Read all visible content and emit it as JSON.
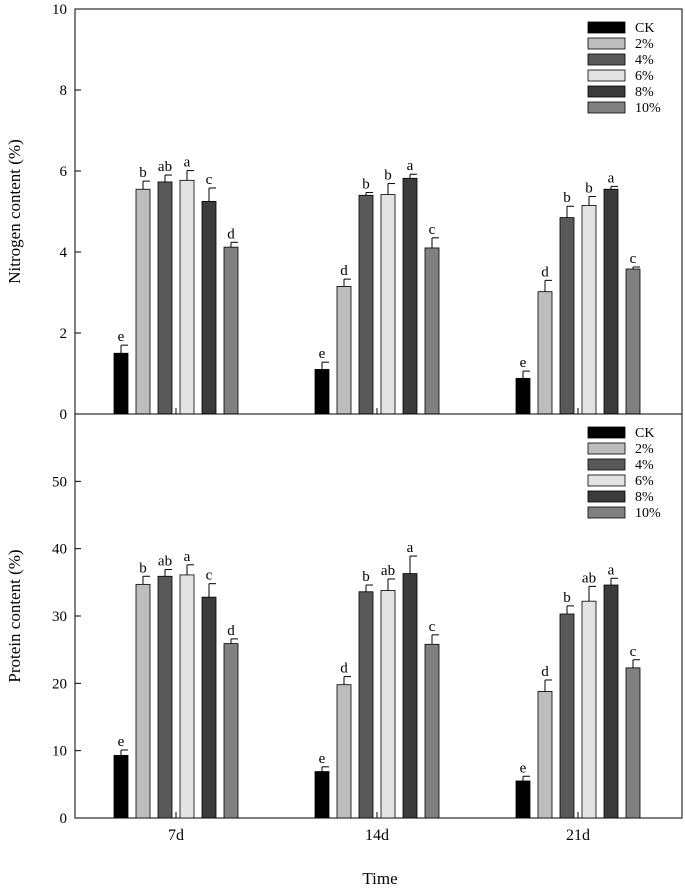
{
  "chart_data": [
    {
      "type": "bar",
      "panel": "top",
      "categories": [
        "7d",
        "14d",
        "21d"
      ],
      "ylabel": "Nitrogen content (%)",
      "ylim": [
        0,
        10
      ],
      "yticks": [
        0,
        2,
        4,
        6,
        8,
        10
      ],
      "legend_position": "top-right",
      "series": [
        {
          "name": "CK",
          "color": "#000000",
          "values": [
            1.5,
            1.1,
            0.88
          ],
          "errors": [
            0.2,
            0.18,
            0.18
          ],
          "letters": [
            "e",
            "e",
            "e"
          ]
        },
        {
          "name": "2%",
          "color": "#bdbdbd",
          "values": [
            5.55,
            3.15,
            3.02
          ],
          "errors": [
            0.2,
            0.18,
            0.28
          ],
          "letters": [
            "b",
            "d",
            "d"
          ]
        },
        {
          "name": "4%",
          "color": "#595959",
          "values": [
            5.73,
            5.4,
            4.85
          ],
          "errors": [
            0.17,
            0.07,
            0.28
          ],
          "letters": [
            "ab",
            "b",
            "b"
          ]
        },
        {
          "name": "6%",
          "color": "#e3e3e3",
          "values": [
            5.77,
            5.42,
            5.15
          ],
          "errors": [
            0.24,
            0.27,
            0.22
          ],
          "letters": [
            "a",
            "b",
            "b"
          ]
        },
        {
          "name": "8%",
          "color": "#3b3b3b",
          "values": [
            5.25,
            5.82,
            5.55
          ],
          "errors": [
            0.33,
            0.1,
            0.07
          ],
          "letters": [
            "c",
            "a",
            "a"
          ]
        },
        {
          "name": "10%",
          "color": "#808080",
          "values": [
            4.12,
            4.1,
            3.58
          ],
          "errors": [
            0.12,
            0.25,
            0.05
          ],
          "letters": [
            "d",
            "c",
            "c"
          ]
        }
      ]
    },
    {
      "type": "bar",
      "panel": "bottom",
      "categories": [
        "7d",
        "14d",
        "21d"
      ],
      "xlabel": "Time",
      "ylabel": "Protein content (%)",
      "ylim": [
        0,
        60
      ],
      "yticks": [
        0,
        10,
        20,
        30,
        40,
        50
      ],
      "legend_position": "top-right",
      "series": [
        {
          "name": "CK",
          "color": "#000000",
          "values": [
            9.3,
            6.9,
            5.5
          ],
          "errors": [
            0.8,
            0.7,
            0.7
          ],
          "letters": [
            "e",
            "e",
            "e"
          ]
        },
        {
          "name": "2%",
          "color": "#bdbdbd",
          "values": [
            34.7,
            19.8,
            18.8
          ],
          "errors": [
            1.2,
            1.2,
            1.7
          ],
          "letters": [
            "b",
            "d",
            "d"
          ]
        },
        {
          "name": "4%",
          "color": "#595959",
          "values": [
            35.9,
            33.6,
            30.3
          ],
          "errors": [
            1.0,
            1.0,
            1.2
          ],
          "letters": [
            "ab",
            "b",
            "b"
          ]
        },
        {
          "name": "6%",
          "color": "#e3e3e3",
          "values": [
            36.1,
            33.8,
            32.2
          ],
          "errors": [
            1.5,
            1.7,
            2.2
          ],
          "letters": [
            "a",
            "ab",
            "ab"
          ]
        },
        {
          "name": "8%",
          "color": "#3b3b3b",
          "values": [
            32.8,
            36.3,
            34.6
          ],
          "errors": [
            2.0,
            2.6,
            1.0
          ],
          "letters": [
            "c",
            "a",
            "a"
          ]
        },
        {
          "name": "10%",
          "color": "#808080",
          "values": [
            25.9,
            25.8,
            22.3
          ],
          "errors": [
            0.7,
            1.4,
            1.2
          ],
          "letters": [
            "d",
            "c",
            "c"
          ]
        }
      ]
    }
  ]
}
